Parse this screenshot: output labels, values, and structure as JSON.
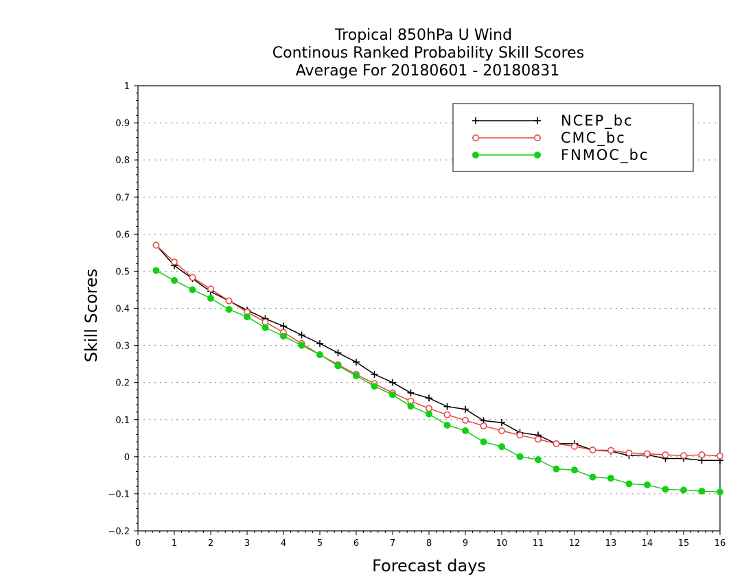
{
  "chart_data": {
    "type": "line",
    "title": [
      "Tropical 850hPa U Wind",
      "Continous Ranked Probability Skill Scores",
      "Average For 20180601 - 20180831"
    ],
    "xlabel": "Forecast days",
    "ylabel": "Skill Scores",
    "xlim": [
      0,
      16
    ],
    "ylim": [
      -0.2,
      1
    ],
    "xticks": [
      "0",
      "1",
      "2",
      "3",
      "4",
      "5",
      "6",
      "7",
      "8",
      "9",
      "10",
      "11",
      "12",
      "13",
      "14",
      "15",
      "16"
    ],
    "yticks": [
      "−0.2",
      "−0.1",
      "0",
      "0.1",
      "0.2",
      "0.3",
      "0.4",
      "0.5",
      "0.6",
      "0.7",
      "0.8",
      "0.9",
      "1"
    ],
    "grid": "horizontal dotted",
    "legend_position": "top-right",
    "x": [
      0.5,
      1,
      1.5,
      2,
      2.5,
      3,
      3.5,
      4,
      4.5,
      5,
      5.5,
      6,
      6.5,
      7,
      7.5,
      8,
      8.5,
      9,
      9.5,
      10,
      10.5,
      11,
      11.5,
      12,
      12.5,
      13,
      13.5,
      14,
      14.5,
      15,
      15.5,
      16
    ],
    "series": [
      {
        "name": "NCEP_bc",
        "color": "#000000",
        "marker": "plus",
        "values": [
          0.57,
          0.515,
          0.48,
          0.445,
          0.42,
          0.395,
          0.372,
          0.352,
          0.328,
          0.305,
          0.28,
          0.255,
          0.222,
          0.2,
          0.172,
          0.158,
          0.135,
          0.128,
          0.097,
          0.092,
          0.065,
          0.058,
          0.035,
          0.035,
          0.018,
          0.015,
          0.003,
          0.005,
          -0.005,
          -0.005,
          -0.01,
          -0.01
        ]
      },
      {
        "name": "CMC_bc",
        "color": "#e8433f",
        "marker": "open-circle",
        "values": [
          0.57,
          0.525,
          0.483,
          0.452,
          0.42,
          0.39,
          0.363,
          0.335,
          0.305,
          0.275,
          0.248,
          0.222,
          0.197,
          0.172,
          0.15,
          0.13,
          0.113,
          0.098,
          0.083,
          0.07,
          0.058,
          0.047,
          0.035,
          0.028,
          0.018,
          0.017,
          0.01,
          0.008,
          0.005,
          0.003,
          0.005,
          0.002
        ]
      },
      {
        "name": "FNMOC_bc",
        "color": "#14d014",
        "marker": "filled-circle",
        "values": [
          0.502,
          0.475,
          0.45,
          0.427,
          0.397,
          0.377,
          0.348,
          0.325,
          0.3,
          0.275,
          0.245,
          0.218,
          0.19,
          0.167,
          0.136,
          0.115,
          0.085,
          0.07,
          0.04,
          0.027,
          0.0,
          -0.008,
          -0.033,
          -0.036,
          -0.055,
          -0.058,
          -0.073,
          -0.076,
          -0.088,
          -0.09,
          -0.093,
          -0.095
        ]
      }
    ]
  }
}
